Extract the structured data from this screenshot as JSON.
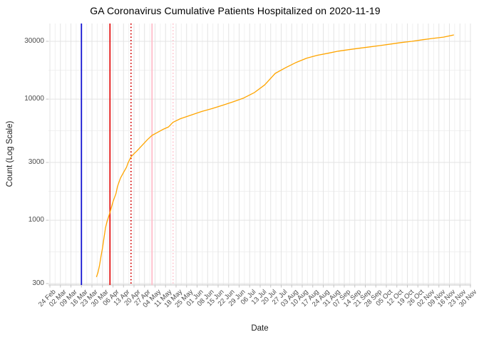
{
  "title": "GA Coronavirus Cumulative Patients Hospitalized on 2020-11-19",
  "x_axis": {
    "label": "Date",
    "start_date": "2020-02-24",
    "tick_interval_days": 7,
    "tick_labels": [
      "24 Feb",
      "02 Mar",
      "09 Mar",
      "16 Mar",
      "23 Mar",
      "30 Mar",
      "06 Apr",
      "13 Apr",
      "20 Apr",
      "27 Apr",
      "04 May",
      "11 May",
      "18 May",
      "25 May",
      "01 Jun",
      "08 Jun",
      "15 Jun",
      "22 Jun",
      "29 Jun",
      "06 Jul",
      "13 Jul",
      "20 Jul",
      "27 Jul",
      "03 Aug",
      "10 Aug",
      "17 Aug",
      "24 Aug",
      "31 Aug",
      "07 Sep",
      "14 Sep",
      "21 Sep",
      "28 Sep",
      "05 Oct",
      "12 Oct",
      "19 Oct",
      "26 Oct",
      "02 Nov",
      "09 Nov",
      "16 Nov",
      "23 Nov",
      "30 Nov"
    ]
  },
  "y_axis": {
    "label": "Count (Log Scale)",
    "tick_labels": [
      "30000",
      "10000",
      "3000",
      "1000",
      "300"
    ],
    "tick_values": [
      30000,
      10000,
      3000,
      1000,
      300
    ]
  },
  "colors": {
    "series": "#FFA500",
    "grid_major": "#e3e3e3",
    "grid_minor": "#f0f0f0",
    "axis_line": "#c4c4c4",
    "tick_text": "#4d4d4d",
    "event_blue": "#1414D2",
    "event_red": "#E31414",
    "event_red_dotted": "#D40000",
    "event_pink": "#FFBDC9",
    "event_pink_dotted": "#FFC6D0"
  },
  "event_lines": [
    {
      "date": "2020-03-16",
      "color": "#1414D2",
      "style": "solid"
    },
    {
      "date": "2020-04-04",
      "color": "#E31414",
      "style": "solid"
    },
    {
      "date": "2020-04-18",
      "color": "#D40000",
      "style": "dotted"
    },
    {
      "date": "2020-05-02",
      "color": "#FFBDC9",
      "style": "solid"
    },
    {
      "date": "2020-05-16",
      "color": "#FFC6D0",
      "style": "dotted"
    }
  ],
  "chart_data": {
    "type": "line",
    "title": "GA Coronavirus Cumulative Patients Hospitalized on 2020-11-19",
    "xlabel": "Date",
    "ylabel": "Count (Log Scale)",
    "y_scale": "log10",
    "ylim": [
      292,
      41000
    ],
    "x_range": [
      "2020-02-24",
      "2020-11-30"
    ],
    "grid": true,
    "legend": false,
    "series": [
      {
        "name": "cumulative-hospitalized",
        "color": "#FFA500",
        "points": [
          [
            "2020-03-26",
            340
          ],
          [
            "2020-03-27",
            370
          ],
          [
            "2020-03-28",
            420
          ],
          [
            "2020-03-29",
            500
          ],
          [
            "2020-03-30",
            590
          ],
          [
            "2020-03-31",
            715
          ],
          [
            "2020-04-01",
            865
          ],
          [
            "2020-04-02",
            975
          ],
          [
            "2020-04-03",
            1060
          ],
          [
            "2020-04-04",
            1160
          ],
          [
            "2020-04-06",
            1420
          ],
          [
            "2020-04-08",
            1660
          ],
          [
            "2020-04-09",
            1900
          ],
          [
            "2020-04-11",
            2230
          ],
          [
            "2020-04-13",
            2480
          ],
          [
            "2020-04-15",
            2740
          ],
          [
            "2020-04-16",
            2970
          ],
          [
            "2020-04-18",
            3340
          ],
          [
            "2020-04-20",
            3540
          ],
          [
            "2020-04-22",
            3740
          ],
          [
            "2020-04-25",
            4100
          ],
          [
            "2020-04-29",
            4640
          ],
          [
            "2020-05-02",
            5020
          ],
          [
            "2020-05-06",
            5340
          ],
          [
            "2020-05-09",
            5600
          ],
          [
            "2020-05-13",
            5900
          ],
          [
            "2020-05-16",
            6440
          ],
          [
            "2020-05-21",
            6900
          ],
          [
            "2020-05-28",
            7380
          ],
          [
            "2020-06-04",
            7900
          ],
          [
            "2020-06-11",
            8350
          ],
          [
            "2020-06-18",
            8900
          ],
          [
            "2020-06-25",
            9500
          ],
          [
            "2020-07-02",
            10200
          ],
          [
            "2020-07-09",
            11300
          ],
          [
            "2020-07-16",
            13100
          ],
          [
            "2020-07-23",
            16300
          ],
          [
            "2020-07-30",
            18200
          ],
          [
            "2020-08-06",
            20100
          ],
          [
            "2020-08-13",
            21800
          ],
          [
            "2020-08-20",
            23000
          ],
          [
            "2020-08-27",
            23900
          ],
          [
            "2020-09-03",
            24900
          ],
          [
            "2020-09-10",
            25600
          ],
          [
            "2020-09-17",
            26300
          ],
          [
            "2020-09-24",
            27000
          ],
          [
            "2020-10-01",
            27700
          ],
          [
            "2020-10-08",
            28500
          ],
          [
            "2020-10-15",
            29300
          ],
          [
            "2020-10-22",
            30000
          ],
          [
            "2020-10-29",
            30900
          ],
          [
            "2020-11-05",
            31700
          ],
          [
            "2020-11-12",
            32500
          ],
          [
            "2020-11-19",
            33900
          ]
        ]
      }
    ]
  }
}
